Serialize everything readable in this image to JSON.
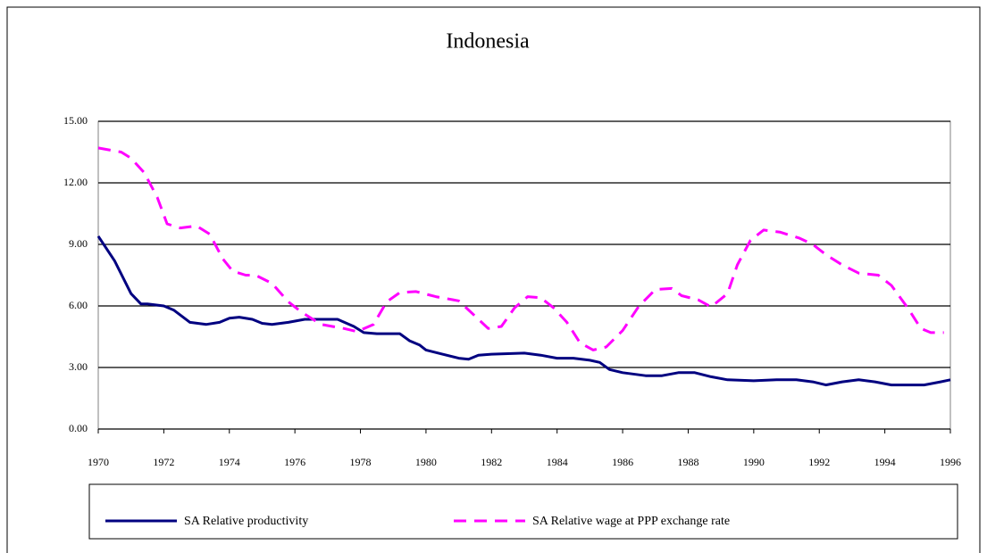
{
  "chart_data": {
    "type": "line",
    "title": "Indonesia",
    "xlim": [
      1970,
      1996
    ],
    "xticks": [
      1970,
      1972,
      1974,
      1976,
      1978,
      1980,
      1982,
      1984,
      1986,
      1988,
      1990,
      1992,
      1994,
      1996
    ],
    "ylim": [
      0,
      15
    ],
    "yticks": [
      {
        "value": 0,
        "label": "0.00"
      },
      {
        "value": 3,
        "label": "3.00"
      },
      {
        "value": 6,
        "label": "6.00"
      },
      {
        "value": 9,
        "label": "9.00"
      },
      {
        "value": 12,
        "label": "12.00"
      },
      {
        "value": 15,
        "label": "15.00"
      }
    ],
    "grid": true,
    "legend": "bottom",
    "series": [
      {
        "name": "SA Relative productivity",
        "color": "#000080",
        "dash": false,
        "x": [
          1970,
          1970.5,
          1971,
          1971.3,
          1971.5,
          1972,
          1972.3,
          1972.8,
          1973.3,
          1973.7,
          1974,
          1974.3,
          1974.7,
          1975,
          1975.3,
          1975.8,
          1976.3,
          1977,
          1977.3,
          1977.8,
          1978.1,
          1978.5,
          1979.2,
          1979.5,
          1979.8,
          1980,
          1980.5,
          1981,
          1981.3,
          1981.6,
          1982,
          1983,
          1983.5,
          1984,
          1984.5,
          1985,
          1985.3,
          1985.6,
          1986,
          1986.7,
          1987.2,
          1987.7,
          1988.2,
          1988.7,
          1989.2,
          1990,
          1990.7,
          1991.3,
          1991.8,
          1992.2,
          1992.7,
          1993.2,
          1993.7,
          1994.2,
          1995.2,
          1995.7,
          1996
        ],
        "values": [
          9.4,
          8.2,
          6.6,
          6.1,
          6.1,
          6.0,
          5.8,
          5.2,
          5.1,
          5.2,
          5.4,
          5.45,
          5.35,
          5.15,
          5.1,
          5.2,
          5.35,
          5.35,
          5.35,
          5.0,
          4.7,
          4.65,
          4.65,
          4.3,
          4.1,
          3.85,
          3.65,
          3.45,
          3.4,
          3.6,
          3.65,
          3.7,
          3.6,
          3.45,
          3.45,
          3.35,
          3.25,
          2.9,
          2.75,
          2.6,
          2.6,
          2.75,
          2.75,
          2.55,
          2.4,
          2.35,
          2.4,
          2.4,
          2.3,
          2.15,
          2.3,
          2.4,
          2.3,
          2.15,
          2.15,
          2.3,
          2.4
        ]
      },
      {
        "name": "SA Relative wage at PPP exchange rate",
        "color": "#ff00ff",
        "dash": true,
        "x": [
          1970,
          1970.7,
          1971,
          1971.4,
          1971.8,
          1972.1,
          1972.5,
          1973,
          1973.4,
          1973.8,
          1974.1,
          1974.5,
          1974.8,
          1975.3,
          1975.8,
          1976.2,
          1976.8,
          1977.5,
          1977.9,
          1978.4,
          1978.8,
          1979.2,
          1979.7,
          1980.3,
          1981,
          1981.5,
          1981.9,
          1982.3,
          1982.7,
          1983.1,
          1983.5,
          1983.9,
          1984.3,
          1984.7,
          1985.1,
          1985.5,
          1986,
          1986.5,
          1987,
          1987.5,
          1987.8,
          1988.3,
          1988.7,
          1989.2,
          1989.5,
          1989.9,
          1990.3,
          1990.8,
          1991.4,
          1991.8,
          1992.2,
          1992.7,
          1993.2,
          1993.8,
          1994.2,
          1994.7,
          1995.1,
          1995.4,
          1995.8
        ],
        "values": [
          13.7,
          13.5,
          13.2,
          12.5,
          11.3,
          10.0,
          9.8,
          9.9,
          9.5,
          8.3,
          7.7,
          7.5,
          7.5,
          7.1,
          6.2,
          5.7,
          5.1,
          4.9,
          4.75,
          5.1,
          6.2,
          6.65,
          6.7,
          6.45,
          6.25,
          5.5,
          4.9,
          5.0,
          5.9,
          6.45,
          6.4,
          5.9,
          5.2,
          4.2,
          3.85,
          4.0,
          4.8,
          6.0,
          6.8,
          6.85,
          6.5,
          6.3,
          5.95,
          6.6,
          8.0,
          9.2,
          9.7,
          9.6,
          9.3,
          9.0,
          8.5,
          8.0,
          7.6,
          7.5,
          7.0,
          5.9,
          4.9,
          4.7,
          4.7
        ]
      }
    ]
  }
}
